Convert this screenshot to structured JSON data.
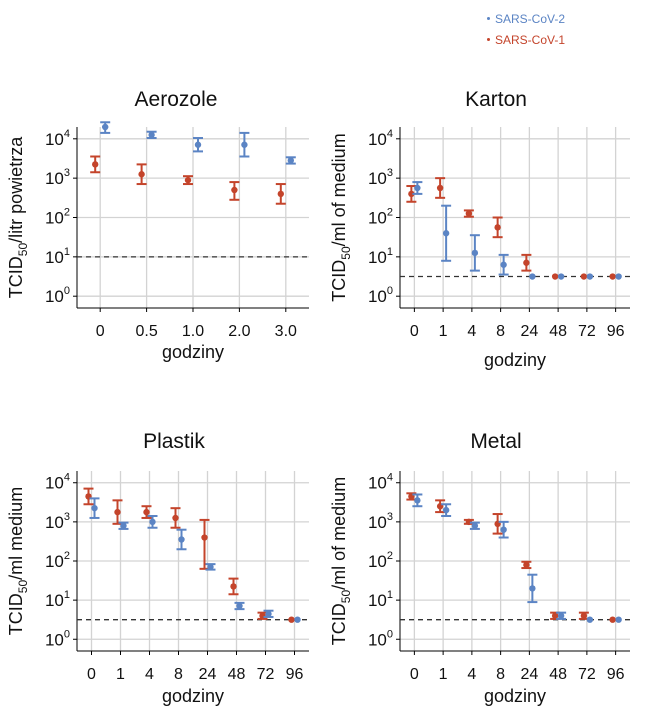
{
  "legend": [
    {
      "label": "SARS-CoV-2",
      "color": "#5b84c4"
    },
    {
      "label": "SARS-CoV-1",
      "color": "#c4442b"
    }
  ],
  "colors": {
    "grid": "#d3d3d3",
    "dashed": "#333333",
    "axis": "#000000"
  },
  "chart_data": [
    {
      "type": "scatter",
      "title": "Aerozole",
      "xlabel": "godziny",
      "ylabel": "TCID",
      "ylabel_sub": "50",
      "ylabel_suffix": "/litr powietrza",
      "yscale": "log",
      "ylim_log10": [
        -0.3,
        4.3
      ],
      "yticks": [
        {
          "base": "10",
          "exp": "0",
          "log": 0
        },
        {
          "base": "10",
          "exp": "1",
          "log": 1
        },
        {
          "base": "10",
          "exp": "2",
          "log": 2
        },
        {
          "base": "10",
          "exp": "3",
          "log": 3
        },
        {
          "base": "10",
          "exp": "4",
          "log": 4
        }
      ],
      "categories": [
        "0",
        "0.5",
        "1.0",
        "2.0",
        "3.0"
      ],
      "detection_limit_log10": 1.0,
      "series": [
        {
          "name": "SARS-CoV-1",
          "points": [
            {
              "x": "0",
              "log10": 3.35,
              "lo": 3.15,
              "hi": 3.55
            },
            {
              "x": "0.5",
              "log10": 3.1,
              "lo": 2.85,
              "hi": 3.35
            },
            {
              "x": "1.0",
              "log10": 2.95,
              "lo": 2.85,
              "hi": 3.05
            },
            {
              "x": "2.0",
              "log10": 2.7,
              "lo": 2.45,
              "hi": 2.9
            },
            {
              "x": "3.0",
              "log10": 2.6,
              "lo": 2.35,
              "hi": 2.85
            }
          ]
        },
        {
          "name": "SARS-CoV-2",
          "points": [
            {
              "x": "0",
              "log10": 4.3,
              "lo": 4.15,
              "hi": 4.42
            },
            {
              "x": "0.5",
              "log10": 4.1,
              "lo": 4.02,
              "hi": 4.18
            },
            {
              "x": "1.0",
              "log10": 3.85,
              "lo": 3.68,
              "hi": 4.02
            },
            {
              "x": "2.0",
              "log10": 3.85,
              "lo": 3.55,
              "hi": 4.15
            },
            {
              "x": "3.0",
              "log10": 3.45,
              "lo": 3.37,
              "hi": 3.53
            }
          ]
        }
      ]
    },
    {
      "type": "scatter",
      "title": "Karton",
      "xlabel": "godziny",
      "ylabel": "TCID",
      "ylabel_sub": "50",
      "ylabel_suffix": "/ml of medium",
      "yscale": "log",
      "ylim_log10": [
        -0.3,
        4.3
      ],
      "yticks": [
        {
          "base": "10",
          "exp": "0",
          "log": 0
        },
        {
          "base": "10",
          "exp": "1",
          "log": 1
        },
        {
          "base": "10",
          "exp": "2",
          "log": 2
        },
        {
          "base": "10",
          "exp": "3",
          "log": 3
        },
        {
          "base": "10",
          "exp": "4",
          "log": 4
        }
      ],
      "categories": [
        "0",
        "1",
        "4",
        "8",
        "24",
        "48",
        "72",
        "96"
      ],
      "detection_limit_log10": 0.5,
      "series": [
        {
          "name": "SARS-CoV-1",
          "points": [
            {
              "x": "0",
              "log10": 2.6,
              "lo": 2.4,
              "hi": 2.8
            },
            {
              "x": "1",
              "log10": 2.75,
              "lo": 2.5,
              "hi": 3.0
            },
            {
              "x": "4",
              "log10": 2.1,
              "lo": 2.02,
              "hi": 2.18
            },
            {
              "x": "8",
              "log10": 1.75,
              "lo": 1.5,
              "hi": 2.0
            },
            {
              "x": "24",
              "log10": 0.85,
              "lo": 0.65,
              "hi": 1.05
            },
            {
              "x": "48",
              "log10": 0.5,
              "lo": 0.5,
              "hi": 0.5
            },
            {
              "x": "72",
              "log10": 0.5,
              "lo": 0.5,
              "hi": 0.5
            },
            {
              "x": "96",
              "log10": 0.5,
              "lo": 0.5,
              "hi": 0.5
            }
          ]
        },
        {
          "name": "SARS-CoV-2",
          "points": [
            {
              "x": "0",
              "log10": 2.75,
              "lo": 2.6,
              "hi": 2.9
            },
            {
              "x": "1",
              "log10": 1.6,
              "lo": 0.9,
              "hi": 2.3
            },
            {
              "x": "4",
              "log10": 1.1,
              "lo": 0.65,
              "hi": 1.55
            },
            {
              "x": "8",
              "log10": 0.8,
              "lo": 0.55,
              "hi": 1.05
            },
            {
              "x": "24",
              "log10": 0.5,
              "lo": 0.5,
              "hi": 0.5
            },
            {
              "x": "48",
              "log10": 0.5,
              "lo": 0.5,
              "hi": 0.5
            },
            {
              "x": "72",
              "log10": 0.5,
              "lo": 0.5,
              "hi": 0.5
            },
            {
              "x": "96",
              "log10": 0.5,
              "lo": 0.5,
              "hi": 0.5
            }
          ]
        }
      ]
    },
    {
      "type": "scatter",
      "title": "Plastik",
      "xlabel": "godziny",
      "ylabel": "TCID",
      "ylabel_sub": "50",
      "ylabel_suffix": "/ml medium",
      "yscale": "log",
      "ylim_log10": [
        -0.3,
        4.3
      ],
      "yticks": [
        {
          "base": "10",
          "exp": "0",
          "log": 0
        },
        {
          "base": "10",
          "exp": "1",
          "log": 1
        },
        {
          "base": "10",
          "exp": "2",
          "log": 2
        },
        {
          "base": "10",
          "exp": "3",
          "log": 3
        },
        {
          "base": "10",
          "exp": "4",
          "log": 4
        }
      ],
      "categories": [
        "0",
        "1",
        "4",
        "8",
        "24",
        "48",
        "72",
        "96"
      ],
      "detection_limit_log10": 0.5,
      "series": [
        {
          "name": "SARS-CoV-1",
          "points": [
            {
              "x": "0",
              "log10": 3.65,
              "lo": 3.45,
              "hi": 3.85
            },
            {
              "x": "1",
              "log10": 3.25,
              "lo": 2.95,
              "hi": 3.55
            },
            {
              "x": "4",
              "log10": 3.25,
              "lo": 3.1,
              "hi": 3.4
            },
            {
              "x": "8",
              "log10": 3.1,
              "lo": 2.85,
              "hi": 3.35
            },
            {
              "x": "24",
              "log10": 2.6,
              "lo": 1.8,
              "hi": 3.05
            },
            {
              "x": "48",
              "log10": 1.35,
              "lo": 1.15,
              "hi": 1.55
            },
            {
              "x": "72",
              "log10": 0.6,
              "lo": 0.52,
              "hi": 0.68
            },
            {
              "x": "96",
              "log10": 0.5,
              "lo": 0.5,
              "hi": 0.5
            }
          ]
        },
        {
          "name": "SARS-CoV-2",
          "points": [
            {
              "x": "0",
              "log10": 3.35,
              "lo": 3.1,
              "hi": 3.6
            },
            {
              "x": "1",
              "log10": 2.9,
              "lo": 2.82,
              "hi": 2.98
            },
            {
              "x": "4",
              "log10": 3.0,
              "lo": 2.85,
              "hi": 3.15
            },
            {
              "x": "8",
              "log10": 2.55,
              "lo": 2.3,
              "hi": 2.8
            },
            {
              "x": "24",
              "log10": 1.85,
              "lo": 1.78,
              "hi": 1.92
            },
            {
              "x": "48",
              "log10": 0.85,
              "lo": 0.77,
              "hi": 0.93
            },
            {
              "x": "72",
              "log10": 0.65,
              "lo": 0.57,
              "hi": 0.73
            },
            {
              "x": "96",
              "log10": 0.5,
              "lo": 0.5,
              "hi": 0.5
            }
          ]
        }
      ]
    },
    {
      "type": "scatter",
      "title": "Metal",
      "xlabel": "godziny",
      "ylabel": "TCID",
      "ylabel_sub": "50",
      "ylabel_suffix": "/ml of medium",
      "yscale": "log",
      "ylim_log10": [
        -0.3,
        4.3
      ],
      "yticks": [
        {
          "base": "10",
          "exp": "0",
          "log": 0
        },
        {
          "base": "10",
          "exp": "1",
          "log": 1
        },
        {
          "base": "10",
          "exp": "2",
          "log": 2
        },
        {
          "base": "10",
          "exp": "3",
          "log": 3
        },
        {
          "base": "10",
          "exp": "4",
          "log": 4
        }
      ],
      "categories": [
        "0",
        "1",
        "4",
        "8",
        "24",
        "48",
        "72",
        "96"
      ],
      "detection_limit_log10": 0.5,
      "series": [
        {
          "name": "SARS-CoV-1",
          "points": [
            {
              "x": "0",
              "log10": 3.65,
              "lo": 3.57,
              "hi": 3.73
            },
            {
              "x": "1",
              "log10": 3.4,
              "lo": 3.25,
              "hi": 3.55
            },
            {
              "x": "4",
              "log10": 3.0,
              "lo": 2.95,
              "hi": 3.05
            },
            {
              "x": "8",
              "log10": 2.95,
              "lo": 2.7,
              "hi": 3.2
            },
            {
              "x": "24",
              "log10": 1.9,
              "lo": 1.82,
              "hi": 1.98
            },
            {
              "x": "48",
              "log10": 0.6,
              "lo": 0.52,
              "hi": 0.68
            },
            {
              "x": "72",
              "log10": 0.6,
              "lo": 0.52,
              "hi": 0.68
            },
            {
              "x": "96",
              "log10": 0.5,
              "lo": 0.5,
              "hi": 0.5
            }
          ]
        },
        {
          "name": "SARS-CoV-2",
          "points": [
            {
              "x": "0",
              "log10": 3.55,
              "lo": 3.4,
              "hi": 3.7
            },
            {
              "x": "1",
              "log10": 3.3,
              "lo": 3.15,
              "hi": 3.45
            },
            {
              "x": "4",
              "log10": 2.9,
              "lo": 2.82,
              "hi": 2.98
            },
            {
              "x": "8",
              "log10": 2.8,
              "lo": 2.6,
              "hi": 3.0
            },
            {
              "x": "24",
              "log10": 1.3,
              "lo": 0.95,
              "hi": 1.65
            },
            {
              "x": "48",
              "log10": 0.6,
              "lo": 0.52,
              "hi": 0.68
            },
            {
              "x": "72",
              "log10": 0.5,
              "lo": 0.5,
              "hi": 0.5
            },
            {
              "x": "96",
              "log10": 0.5,
              "lo": 0.5,
              "hi": 0.5
            }
          ]
        }
      ]
    }
  ]
}
